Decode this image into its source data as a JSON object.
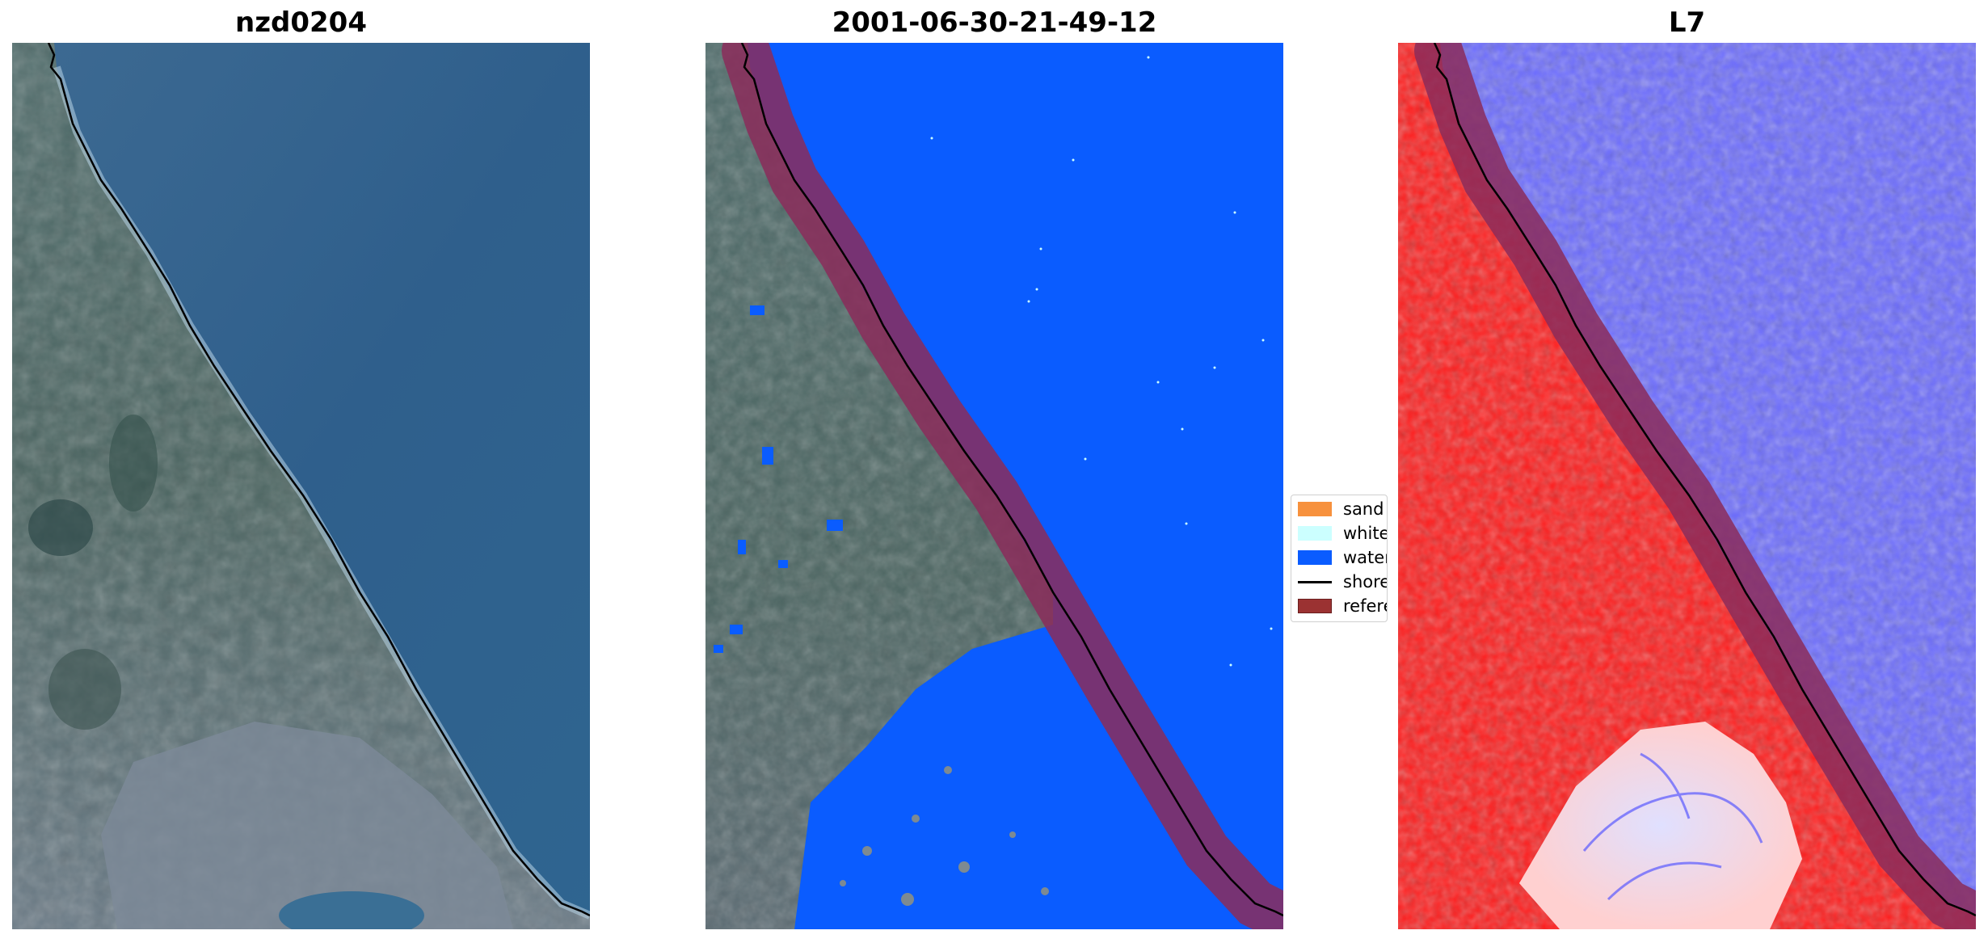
{
  "panels": {
    "left": {
      "title": "nzd0204"
    },
    "middle": {
      "title": "2001-06-30-21-49-12"
    },
    "right": {
      "title": "L7"
    }
  },
  "legend": {
    "items": [
      {
        "label": "sand",
        "color": "#f7913d",
        "kind": "patch"
      },
      {
        "label": "whitewater",
        "color": "#ccffff",
        "kind": "patch"
      },
      {
        "label": "water",
        "color": "#0a5cff",
        "kind": "patch"
      },
      {
        "label": "shoreline",
        "color": "#000000",
        "kind": "line"
      },
      {
        "label": "reference shoreline buffer",
        "color": "#9b3232",
        "kind": "patch"
      }
    ]
  },
  "colors": {
    "water_class": "#0a5cff",
    "buffer": "#8b2c5a",
    "index_high": "#ff0000",
    "index_low": "#3232ff",
    "shoreline": "#000000"
  }
}
